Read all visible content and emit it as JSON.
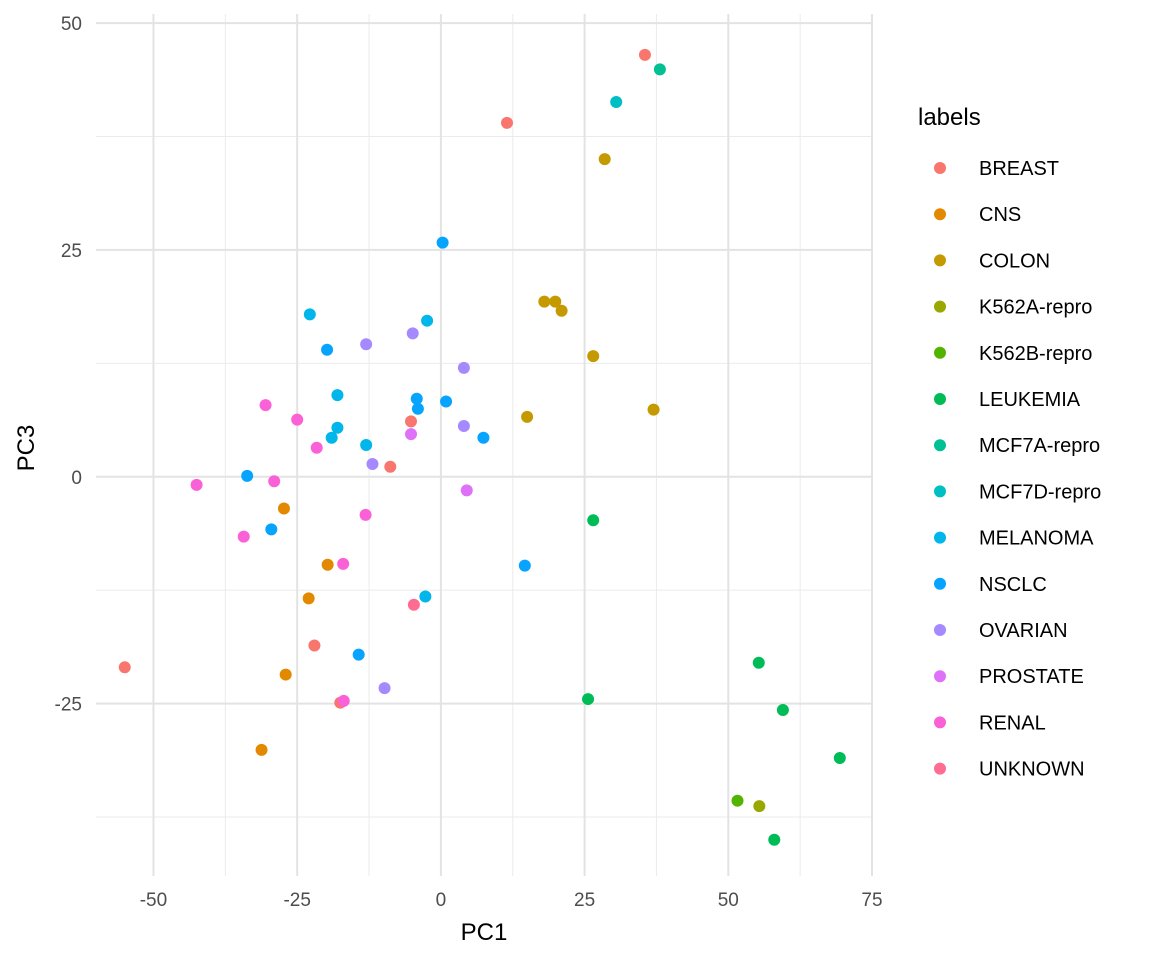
{
  "chart_data": {
    "type": "scatter",
    "xlabel": "PC1",
    "ylabel": "PC3",
    "xlim": [
      -60,
      75
    ],
    "ylim": [
      -44,
      51
    ],
    "x_ticks": [
      -50,
      -25,
      0,
      25,
      50,
      75
    ],
    "y_ticks": [
      -25,
      0,
      25,
      50
    ],
    "x_tick_labels": [
      "-50",
      "-25",
      "0",
      "25",
      "50",
      "75"
    ],
    "y_tick_labels": [
      "-25",
      "0",
      "25",
      "50"
    ],
    "grid": true,
    "legend_title": "labels",
    "legend_position": "right",
    "series": [
      {
        "name": "BREAST",
        "color": "#F8766D",
        "points": [
          [
            35.5,
            46.5
          ],
          [
            11.5,
            39.0
          ],
          [
            -5.2,
            6.1
          ],
          [
            -8.8,
            1.1
          ],
          [
            -22.0,
            -18.6
          ],
          [
            -17.5,
            -24.9
          ],
          [
            -55.0,
            -21.0
          ]
        ]
      },
      {
        "name": "CNS",
        "color": "#E38900",
        "points": [
          [
            -27.3,
            -3.5
          ],
          [
            -19.7,
            -9.7
          ],
          [
            -23.0,
            -13.4
          ],
          [
            -27.0,
            -21.8
          ],
          [
            -31.2,
            -30.1
          ]
        ]
      },
      {
        "name": "COLON",
        "color": "#C49A00",
        "points": [
          [
            28.5,
            35.0
          ],
          [
            18.0,
            19.3
          ],
          [
            19.9,
            19.3
          ],
          [
            21.0,
            18.3
          ],
          [
            26.5,
            13.3
          ],
          [
            15.0,
            6.6
          ],
          [
            37.0,
            7.4
          ]
        ]
      },
      {
        "name": "K562A-repro",
        "color": "#99A800",
        "points": [
          [
            55.4,
            -36.3
          ]
        ]
      },
      {
        "name": "K562B-repro",
        "color": "#53B400",
        "points": [
          [
            51.6,
            -35.7
          ]
        ]
      },
      {
        "name": "LEUKEMIA",
        "color": "#00BC56",
        "points": [
          [
            26.5,
            -4.8
          ],
          [
            25.6,
            -24.5
          ],
          [
            55.3,
            -20.5
          ],
          [
            59.5,
            -25.7
          ],
          [
            69.4,
            -31.0
          ],
          [
            58.0,
            -40.0
          ]
        ]
      },
      {
        "name": "MCF7A-repro",
        "color": "#00C094",
        "points": [
          [
            38.1,
            44.9
          ]
        ]
      },
      {
        "name": "MCF7D-repro",
        "color": "#00BFC4",
        "points": [
          [
            30.5,
            41.3
          ]
        ]
      },
      {
        "name": "MELANOMA",
        "color": "#00B6EB",
        "points": [
          [
            -22.8,
            17.9
          ],
          [
            -2.4,
            17.2
          ],
          [
            -18.0,
            9.0
          ],
          [
            -18.0,
            5.4
          ],
          [
            -19.0,
            4.3
          ],
          [
            -13.0,
            3.5
          ],
          [
            -2.7,
            -13.2
          ]
        ]
      },
      {
        "name": "NSCLC",
        "color": "#06A4FF",
        "points": [
          [
            0.3,
            25.8
          ],
          [
            -19.8,
            14.0
          ],
          [
            -4.2,
            8.6
          ],
          [
            -4.0,
            7.5
          ],
          [
            0.9,
            8.3
          ],
          [
            7.4,
            4.3
          ],
          [
            -33.7,
            0.1
          ],
          [
            -29.5,
            -5.8
          ],
          [
            14.6,
            -9.8
          ],
          [
            -14.3,
            -19.6
          ]
        ]
      },
      {
        "name": "OVARIAN",
        "color": "#A58AFF",
        "points": [
          [
            -4.9,
            15.8
          ],
          [
            -13.0,
            14.6
          ],
          [
            4.0,
            12.0
          ],
          [
            4.0,
            5.6
          ],
          [
            -11.9,
            1.4
          ],
          [
            -9.8,
            -23.3
          ]
        ]
      },
      {
        "name": "PROSTATE",
        "color": "#DF70F8",
        "points": [
          [
            -5.2,
            4.7
          ],
          [
            4.5,
            -1.5
          ]
        ]
      },
      {
        "name": "RENAL",
        "color": "#FB61D7",
        "points": [
          [
            -30.5,
            7.9
          ],
          [
            -25.0,
            6.3
          ],
          [
            -21.6,
            3.2
          ],
          [
            -42.5,
            -0.9
          ],
          [
            -29.0,
            -0.5
          ],
          [
            -13.1,
            -4.2
          ],
          [
            -34.3,
            -6.6
          ],
          [
            -17.0,
            -9.6
          ],
          [
            -16.9,
            -24.7
          ]
        ]
      },
      {
        "name": "UNKNOWN",
        "color": "#FF6C91",
        "points": [
          [
            -4.7,
            -14.1
          ]
        ]
      }
    ]
  }
}
